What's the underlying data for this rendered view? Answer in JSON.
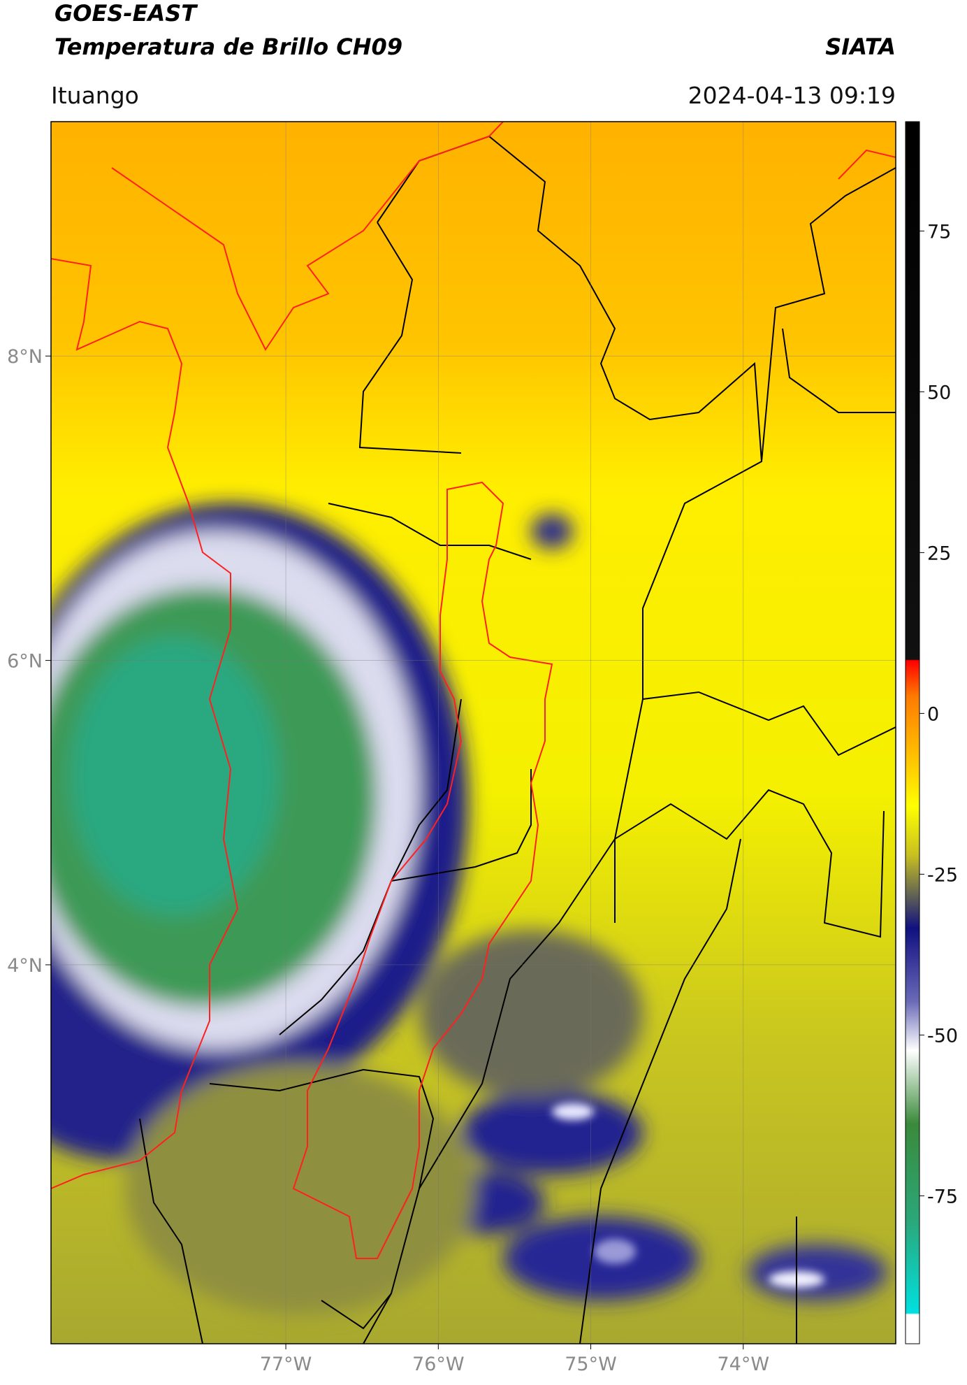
{
  "header": {
    "title_line1": "GOES-EAST",
    "title_line2": "Temperatura de Brillo CH09",
    "organization": "SIATA",
    "location": "Ituango",
    "datetime": "2024-04-13 09:19"
  },
  "map": {
    "xlim": [
      -78.54,
      -73.0
    ],
    "ylim": [
      1.51,
      9.54
    ],
    "grid": true,
    "xticks": [
      {
        "value": -77,
        "label": "77°W"
      },
      {
        "value": -76,
        "label": "76°W"
      },
      {
        "value": -75,
        "label": "75°W"
      },
      {
        "value": -74,
        "label": "74°W"
      }
    ],
    "yticks": [
      {
        "value": 8,
        "label": "8°N"
      },
      {
        "value": 6,
        "label": "6°N"
      },
      {
        "value": 4,
        "label": "4°N"
      }
    ]
  },
  "colorbar": {
    "lim": [
      -98,
      92
    ],
    "ticks": [
      75,
      50,
      25,
      0,
      -25,
      -50,
      -75
    ]
  }
}
